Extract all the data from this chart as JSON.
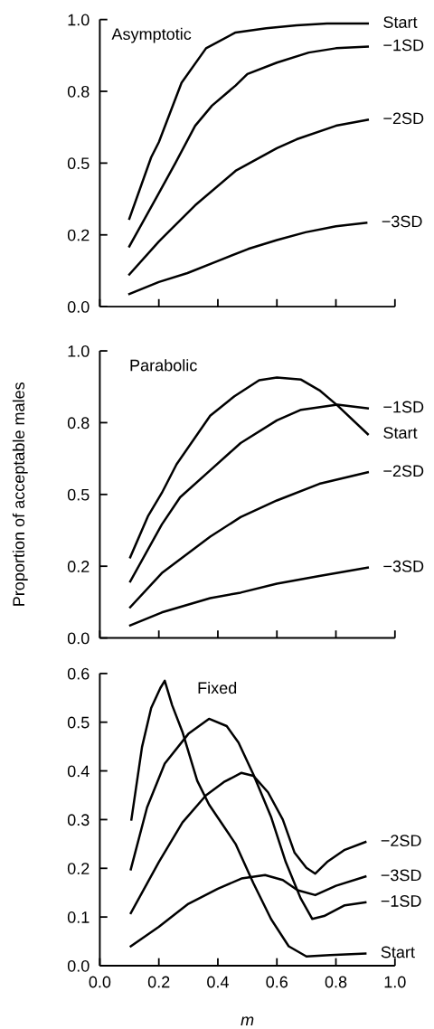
{
  "chart_data": [
    {
      "type": "line",
      "title": "Asymptotic",
      "xlim": [
        0,
        1.0
      ],
      "ylim": [
        0,
        1.0
      ],
      "xticks": [
        {
          "value": 0.0,
          "label": null
        },
        {
          "value": 0.2,
          "label": null
        },
        {
          "value": 0.4,
          "label": null
        },
        {
          "value": 0.6,
          "label": null
        },
        {
          "value": 0.8,
          "label": null
        },
        {
          "value": 1.0,
          "label": null
        }
      ],
      "yticks": [
        {
          "value": 0.0,
          "label": "0.0"
        },
        {
          "value": 0.25,
          "label": "0.2"
        },
        {
          "value": 0.5,
          "label": "0.5"
        },
        {
          "value": 0.75,
          "label": "0.8"
        },
        {
          "value": 1.0,
          "label": "1.0"
        }
      ],
      "tick_labels": "y",
      "grid": false,
      "legend": false,
      "marker": "none",
      "line_style": "solid",
      "series": [
        {
          "name": "Start",
          "color": "#000000",
          "x": [
            0.1,
            0.174,
            0.2,
            0.277,
            0.36,
            0.46,
            0.564,
            0.667,
            0.77,
            0.908
          ],
          "values": [
            0.306,
            0.52,
            0.573,
            0.78,
            0.9,
            0.955,
            0.97,
            0.98,
            0.986,
            0.986
          ]
        },
        {
          "name": "−1SD",
          "color": "#000000",
          "x": [
            0.1,
            0.2,
            0.256,
            0.323,
            0.38,
            0.46,
            0.5,
            0.6,
            0.708,
            0.8,
            0.908
          ],
          "values": [
            0.21,
            0.395,
            0.5,
            0.63,
            0.7,
            0.77,
            0.81,
            0.85,
            0.885,
            0.9,
            0.906
          ]
        },
        {
          "name": "−2SD",
          "color": "#000000",
          "x": [
            0.1,
            0.2,
            0.323,
            0.46,
            0.6,
            0.667,
            0.8,
            0.908
          ],
          "values": [
            0.112,
            0.227,
            0.353,
            0.473,
            0.552,
            0.583,
            0.63,
            0.651
          ]
        },
        {
          "name": "−3SD",
          "color": "#000000",
          "x": [
            0.1,
            0.2,
            0.297,
            0.4,
            0.503,
            0.6,
            0.697,
            0.8,
            0.903
          ],
          "values": [
            0.044,
            0.086,
            0.117,
            0.159,
            0.201,
            0.232,
            0.259,
            0.28,
            0.292
          ]
        }
      ]
    },
    {
      "type": "line",
      "title": "Parabolic",
      "ylabel": "Proportion of acceptable males",
      "xlim": [
        0,
        1.0
      ],
      "ylim": [
        0,
        1.0
      ],
      "xticks": [
        {
          "value": 0.0,
          "label": null
        },
        {
          "value": 0.2,
          "label": null
        },
        {
          "value": 0.4,
          "label": null
        },
        {
          "value": 0.6,
          "label": null
        },
        {
          "value": 0.8,
          "label": null
        },
        {
          "value": 1.0,
          "label": null
        }
      ],
      "yticks": [
        {
          "value": 0.0,
          "label": "0.0"
        },
        {
          "value": 0.25,
          "label": "0.2"
        },
        {
          "value": 0.5,
          "label": "0.5"
        },
        {
          "value": 0.75,
          "label": "0.8"
        },
        {
          "value": 1.0,
          "label": "1.0"
        }
      ],
      "tick_labels": "y",
      "grid": false,
      "legend": false,
      "marker": "none",
      "line_style": "solid",
      "series": [
        {
          "name": "Start",
          "color": "#000000",
          "x": [
            0.103,
            0.164,
            0.21,
            0.26,
            0.374,
            0.456,
            0.54,
            0.6,
            0.682,
            0.744,
            0.805,
            0.908
          ],
          "values": [
            0.281,
            0.426,
            0.505,
            0.605,
            0.774,
            0.842,
            0.898,
            0.907,
            0.9,
            0.863,
            0.81,
            0.71
          ]
        },
        {
          "name": "−1SD",
          "color": "#000000",
          "x": [
            0.103,
            0.21,
            0.272,
            0.374,
            0.477,
            0.6,
            0.682,
            0.805,
            0.908
          ],
          "values": [
            0.197,
            0.395,
            0.49,
            0.584,
            0.679,
            0.758,
            0.795,
            0.813,
            0.8
          ]
        },
        {
          "name": "−2SD",
          "color": "#000000",
          "x": [
            0.103,
            0.21,
            0.374,
            0.477,
            0.6,
            0.744,
            0.908
          ],
          "values": [
            0.107,
            0.226,
            0.353,
            0.421,
            0.479,
            0.537,
            0.577
          ]
        },
        {
          "name": "−3SD",
          "color": "#000000",
          "x": [
            0.103,
            0.21,
            0.374,
            0.477,
            0.6,
            0.744,
            0.908
          ],
          "values": [
            0.044,
            0.089,
            0.139,
            0.158,
            0.189,
            0.216,
            0.245
          ]
        }
      ]
    },
    {
      "type": "line",
      "title": "Fixed",
      "xlabel": "m",
      "xlim": [
        0,
        1.0
      ],
      "ylim": [
        0,
        0.6
      ],
      "xticks": [
        {
          "value": 0.0,
          "label": "0.0"
        },
        {
          "value": 0.2,
          "label": "0.2"
        },
        {
          "value": 0.4,
          "label": "0.4"
        },
        {
          "value": 0.6,
          "label": "0.6"
        },
        {
          "value": 0.8,
          "label": "0.8"
        },
        {
          "value": 1.0,
          "label": "1.0"
        }
      ],
      "yticks": [
        {
          "value": 0.0,
          "label": "0.0"
        },
        {
          "value": 0.1,
          "label": "0.1"
        },
        {
          "value": 0.2,
          "label": "0.2"
        },
        {
          "value": 0.3,
          "label": "0.3"
        },
        {
          "value": 0.4,
          "label": "0.4"
        },
        {
          "value": 0.5,
          "label": "0.5"
        },
        {
          "value": 0.6,
          "label": "0.6"
        }
      ],
      "grid": false,
      "legend": false,
      "marker": "none",
      "line_style": "solid",
      "series": [
        {
          "name": "Start",
          "color": "#000000",
          "x": [
            0.107,
            0.143,
            0.174,
            0.205,
            0.22,
            0.245,
            0.28,
            0.33,
            0.37,
            0.46,
            0.52,
            0.58,
            0.64,
            0.7,
            0.78,
            0.9
          ],
          "values": [
            0.3,
            0.449,
            0.529,
            0.57,
            0.585,
            0.535,
            0.48,
            0.38,
            0.331,
            0.25,
            0.17,
            0.096,
            0.04,
            0.019,
            0.022,
            0.025
          ]
        },
        {
          "name": "−1SD",
          "color": "#000000",
          "x": [
            0.105,
            0.16,
            0.22,
            0.3,
            0.37,
            0.43,
            0.47,
            0.52,
            0.58,
            0.63,
            0.68,
            0.72,
            0.76,
            0.83,
            0.9
          ],
          "values": [
            0.198,
            0.325,
            0.415,
            0.476,
            0.507,
            0.492,
            0.458,
            0.393,
            0.306,
            0.213,
            0.139,
            0.096,
            0.102,
            0.124,
            0.13
          ]
        },
        {
          "name": "−2SD",
          "color": "#000000",
          "x": [
            0.105,
            0.2,
            0.28,
            0.36,
            0.42,
            0.48,
            0.52,
            0.57,
            0.62,
            0.66,
            0.7,
            0.73,
            0.77,
            0.83,
            0.9
          ],
          "values": [
            0.108,
            0.213,
            0.294,
            0.35,
            0.377,
            0.396,
            0.39,
            0.356,
            0.3,
            0.232,
            0.201,
            0.189,
            0.213,
            0.238,
            0.254
          ]
        },
        {
          "name": "−3SD",
          "color": "#000000",
          "x": [
            0.105,
            0.2,
            0.3,
            0.4,
            0.48,
            0.56,
            0.62,
            0.67,
            0.73,
            0.8,
            0.9
          ],
          "values": [
            0.04,
            0.08,
            0.127,
            0.158,
            0.179,
            0.186,
            0.176,
            0.155,
            0.145,
            0.164,
            0.183
          ]
        }
      ]
    }
  ]
}
